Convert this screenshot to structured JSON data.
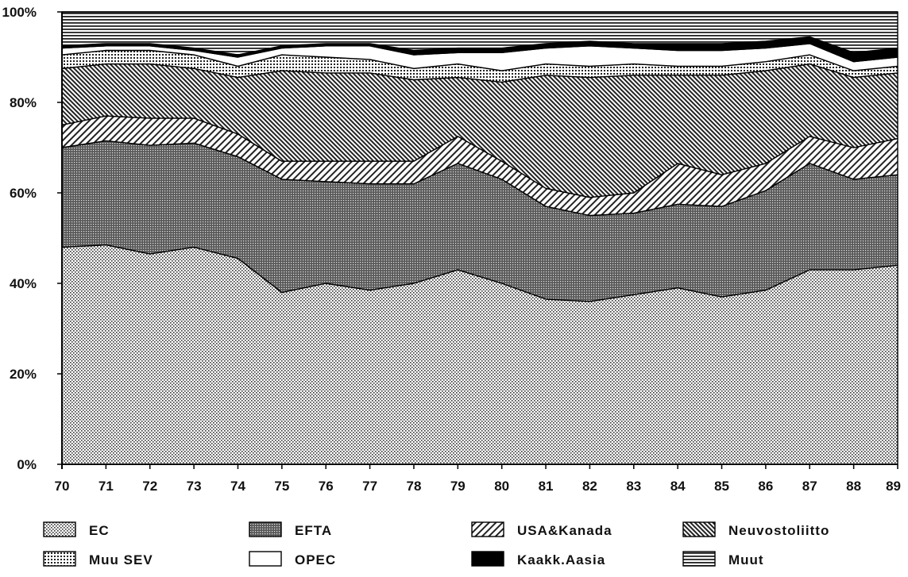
{
  "chart_data": {
    "type": "area",
    "stacked": true,
    "x": [
      "70",
      "71",
      "72",
      "73",
      "74",
      "75",
      "76",
      "77",
      "78",
      "79",
      "80",
      "81",
      "82",
      "83",
      "84",
      "85",
      "86",
      "87",
      "88",
      "89"
    ],
    "ylim": [
      0,
      100
    ],
    "yticks": [
      "0%",
      "20%",
      "40%",
      "60%",
      "80%",
      "100%"
    ],
    "grid": false,
    "legend_position": "bottom",
    "series": [
      {
        "name": "EC",
        "pattern": "fine-dots",
        "values": [
          48,
          48.5,
          46.5,
          48,
          45.5,
          38,
          40,
          38.5,
          40,
          43,
          40,
          36.5,
          36,
          37.5,
          39,
          37,
          38.5,
          43,
          43,
          44
        ]
      },
      {
        "name": "EFTA",
        "pattern": "dense-dots",
        "values": [
          22,
          23,
          24,
          23,
          22.5,
          25,
          22.5,
          23.5,
          22,
          23.5,
          23,
          20.5,
          19,
          18,
          18.5,
          20,
          22,
          23.5,
          20,
          20
        ]
      },
      {
        "name": "USA&Kanada",
        "pattern": "diagonal-right",
        "values": [
          5,
          5.5,
          6,
          5.5,
          5,
          4,
          4.5,
          5,
          5,
          6,
          4,
          4,
          4,
          4.5,
          9,
          7,
          6,
          6,
          7,
          8
        ]
      },
      {
        "name": "Neuvostoliitto",
        "pattern": "diagonal-left",
        "values": [
          12.5,
          11.5,
          12,
          11,
          12.5,
          20,
          19.5,
          19.5,
          18,
          13,
          17.5,
          25,
          26.5,
          26,
          19.5,
          22,
          20.5,
          16,
          15.5,
          14.5
        ]
      },
      {
        "name": "Muu SEV",
        "pattern": "grid-dots",
        "values": [
          3,
          3,
          3,
          3,
          2.5,
          3.5,
          3.5,
          3,
          2.5,
          3,
          2.5,
          2.5,
          2.5,
          2.5,
          2,
          2,
          2,
          2,
          1.5,
          1.5
        ]
      },
      {
        "name": "OPEC",
        "pattern": "white",
        "values": [
          1.5,
          1,
          1,
          1,
          2,
          1.5,
          2.5,
          3,
          3,
          2.5,
          4,
          3.5,
          4.5,
          3.5,
          3.5,
          3.5,
          3,
          2.5,
          2,
          2
        ]
      },
      {
        "name": "Kaakk.Aasia",
        "pattern": "black",
        "values": [
          0.5,
          0.5,
          0.5,
          0.5,
          0.5,
          0.5,
          0.5,
          0.5,
          1,
          1,
          1,
          1,
          1,
          1,
          1.5,
          1.5,
          1.5,
          1.5,
          2,
          2
        ]
      },
      {
        "name": "Muut",
        "pattern": "horizontal-lines",
        "values": [
          7.5,
          7,
          7,
          8,
          9.5,
          7.5,
          7,
          7,
          8.5,
          8,
          8,
          7,
          6.5,
          7,
          7,
          7,
          6.5,
          5.5,
          9,
          8
        ]
      }
    ]
  }
}
